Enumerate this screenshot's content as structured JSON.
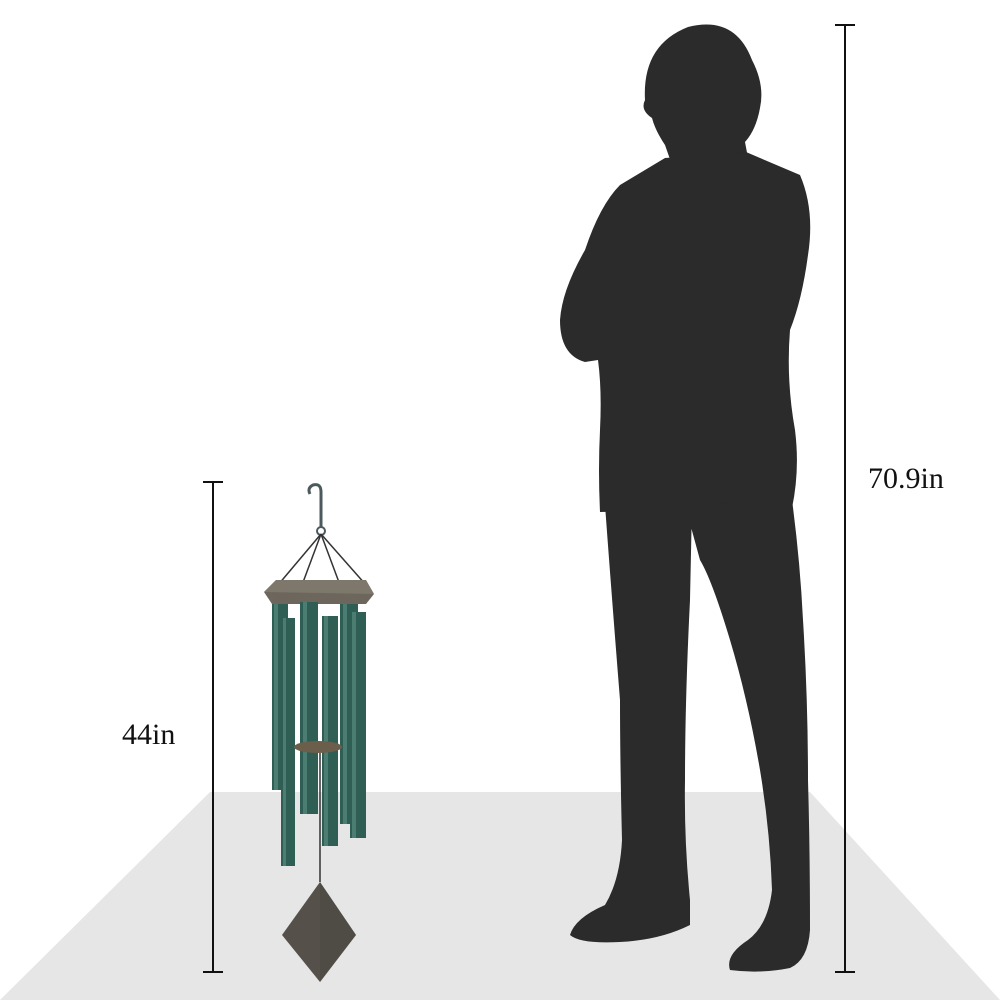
{
  "measurements": {
    "wind_chime_height": "44in",
    "person_height": "70.9in"
  },
  "colors": {
    "background": "#ffffff",
    "floor": "#e6e6e6",
    "silhouette": "#2b2b2b",
    "chime_tube": "#2f5e55",
    "chime_tube_highlight": "#4b7d72",
    "wood": "#6d665c",
    "sail": "#55504a",
    "line": "#111111"
  },
  "icons": {
    "person": "person-silhouette-icon",
    "chime": "wind-chime-icon"
  }
}
